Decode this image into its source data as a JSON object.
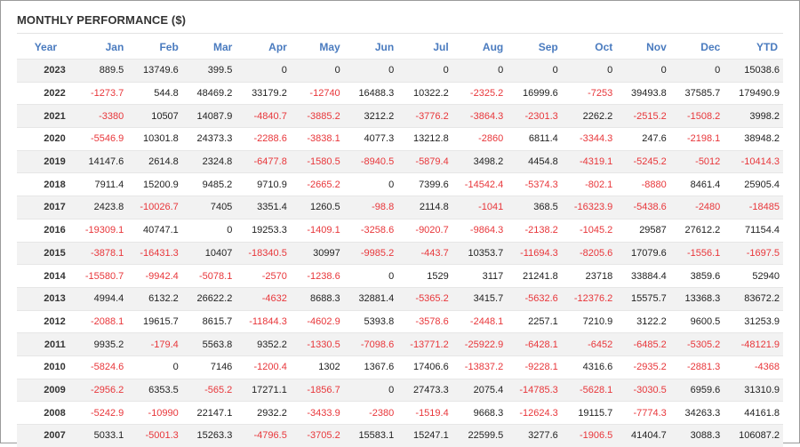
{
  "title": "MONTHLY PERFORMANCE ($)",
  "columns": [
    "Year",
    "Jan",
    "Feb",
    "Mar",
    "Apr",
    "May",
    "Jun",
    "Jul",
    "Aug",
    "Sep",
    "Oct",
    "Nov",
    "Dec",
    "YTD"
  ],
  "rows": [
    [
      "2023",
      "889.5",
      "13749.6",
      "399.5",
      "0",
      "0",
      "0",
      "0",
      "0",
      "0",
      "0",
      "0",
      "0",
      "15038.6"
    ],
    [
      "2022",
      "-1273.7",
      "544.8",
      "48469.2",
      "33179.2",
      "-12740",
      "16488.3",
      "10322.2",
      "-2325.2",
      "16999.6",
      "-7253",
      "39493.8",
      "37585.7",
      "179490.9"
    ],
    [
      "2021",
      "-3380",
      "10507",
      "14087.9",
      "-4840.7",
      "-3885.2",
      "3212.2",
      "-3776.2",
      "-3864.3",
      "-2301.3",
      "2262.2",
      "-2515.2",
      "-1508.2",
      "3998.2"
    ],
    [
      "2020",
      "-5546.9",
      "10301.8",
      "24373.3",
      "-2288.6",
      "-3838.1",
      "4077.3",
      "13212.8",
      "-2860",
      "6811.4",
      "-3344.3",
      "247.6",
      "-2198.1",
      "38948.2"
    ],
    [
      "2019",
      "14147.6",
      "2614.8",
      "2324.8",
      "-6477.8",
      "-1580.5",
      "-8940.5",
      "-5879.4",
      "3498.2",
      "4454.8",
      "-4319.1",
      "-5245.2",
      "-5012",
      "-10414.3"
    ],
    [
      "2018",
      "7911.4",
      "15200.9",
      "9485.2",
      "9710.9",
      "-2665.2",
      "0",
      "7399.6",
      "-14542.4",
      "-5374.3",
      "-802.1",
      "-8880",
      "8461.4",
      "25905.4"
    ],
    [
      "2017",
      "2423.8",
      "-10026.7",
      "7405",
      "3351.4",
      "1260.5",
      "-98.8",
      "2114.8",
      "-1041",
      "368.5",
      "-16323.9",
      "-5438.6",
      "-2480",
      "-18485"
    ],
    [
      "2016",
      "-19309.1",
      "40747.1",
      "0",
      "19253.3",
      "-1409.1",
      "-3258.6",
      "-9020.7",
      "-9864.3",
      "-2138.2",
      "-1045.2",
      "29587",
      "27612.2",
      "71154.4"
    ],
    [
      "2015",
      "-3878.1",
      "-16431.3",
      "10407",
      "-18340.5",
      "30997",
      "-9985.2",
      "-443.7",
      "10353.7",
      "-11694.3",
      "-8205.6",
      "17079.6",
      "-1556.1",
      "-1697.5"
    ],
    [
      "2014",
      "-15580.7",
      "-9942.4",
      "-5078.1",
      "-2570",
      "-1238.6",
      "0",
      "1529",
      "3117",
      "21241.8",
      "23718",
      "33884.4",
      "3859.6",
      "52940"
    ],
    [
      "2013",
      "4994.4",
      "6132.2",
      "26622.2",
      "-4632",
      "8688.3",
      "32881.4",
      "-5365.2",
      "3415.7",
      "-5632.6",
      "-12376.2",
      "15575.7",
      "13368.3",
      "83672.2"
    ],
    [
      "2012",
      "-2088.1",
      "19615.7",
      "8615.7",
      "-11844.3",
      "-4602.9",
      "5393.8",
      "-3578.6",
      "-2448.1",
      "2257.1",
      "7210.9",
      "3122.2",
      "9600.5",
      "31253.9"
    ],
    [
      "2011",
      "9935.2",
      "-179.4",
      "5563.8",
      "9352.2",
      "-1330.5",
      "-7098.6",
      "-13771.2",
      "-25922.9",
      "-6428.1",
      "-6452",
      "-6485.2",
      "-5305.2",
      "-48121.9"
    ],
    [
      "2010",
      "-5824.6",
      "0",
      "7146",
      "-1200.4",
      "1302",
      "1367.6",
      "17406.6",
      "-13837.2",
      "-9228.1",
      "4316.6",
      "-2935.2",
      "-2881.3",
      "-4368"
    ],
    [
      "2009",
      "-2956.2",
      "6353.5",
      "-565.2",
      "17271.1",
      "-1856.7",
      "0",
      "27473.3",
      "2075.4",
      "-14785.3",
      "-5628.1",
      "-3030.5",
      "6959.6",
      "31310.9"
    ],
    [
      "2008",
      "-5242.9",
      "-10990",
      "22147.1",
      "2932.2",
      "-3433.9",
      "-2380",
      "-1519.4",
      "9668.3",
      "-12624.3",
      "19115.7",
      "-7774.3",
      "34263.3",
      "44161.8"
    ],
    [
      "2007",
      "5033.1",
      "-5001.3",
      "15263.3",
      "-4796.5",
      "-3705.2",
      "15583.1",
      "15247.1",
      "22599.5",
      "3277.6",
      "-1906.5",
      "41404.7",
      "3088.3",
      "106087.2"
    ]
  ],
  "colors": {
    "negative": "#e8363a",
    "header": "#4a7bbf",
    "stripe": "#f2f2f2"
  }
}
